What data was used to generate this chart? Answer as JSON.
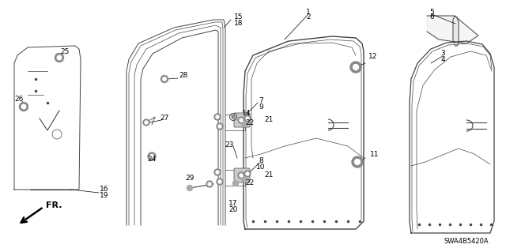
{
  "bg_color": "#ffffff",
  "diagram_code": "SWA4B5420A",
  "line_color": "#444444",
  "label_fontsize": 6.5,
  "code_fontsize": 6.0
}
